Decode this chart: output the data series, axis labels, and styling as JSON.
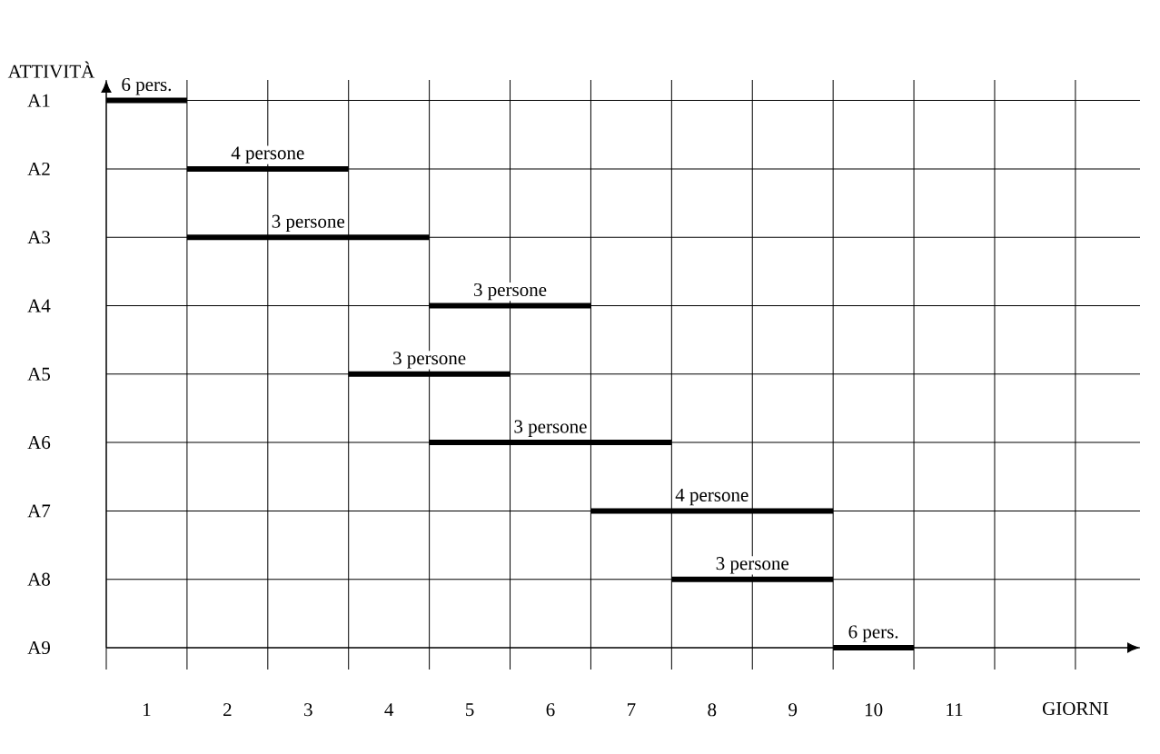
{
  "chart_data": {
    "type": "bar",
    "orientation": "horizontal",
    "color": "#000000",
    "ylabel": "ATTIVITÀ",
    "xlabel": "GIORNI",
    "categories": [
      "A1",
      "A2",
      "A3",
      "A4",
      "A5",
      "A6",
      "A7",
      "A8",
      "A9"
    ],
    "base": [
      0,
      1,
      1,
      4,
      3,
      4,
      6,
      7,
      9
    ],
    "values": [
      1,
      2,
      3,
      2,
      2,
      3,
      3,
      2,
      1
    ],
    "annotations": [
      {
        "text": "6 pers.",
        "x": 0.5,
        "y": "A1"
      },
      {
        "text": "4 persone",
        "x": 2,
        "y": "A2"
      },
      {
        "text": "3 persone",
        "x": 2.5,
        "y": "A3"
      },
      {
        "text": "3 persone",
        "x": 5,
        "y": "A4"
      },
      {
        "text": "3 persone",
        "x": 4,
        "y": "A5"
      },
      {
        "text": "3 persone",
        "x": 5.5,
        "y": "A6"
      },
      {
        "text": "4 persone",
        "x": 7.5,
        "y": "A7"
      },
      {
        "text": "3 persone",
        "x": 8,
        "y": "A8"
      },
      {
        "text": "6 pers.",
        "x": 9.5,
        "y": "A9"
      }
    ],
    "xlim": [
      0,
      12.8
    ],
    "xticks": [
      {
        "value": 0,
        "label": null
      },
      {
        "value": 1,
        "label": null
      },
      {
        "value": 2,
        "label": null
      },
      {
        "value": 3,
        "label": null
      },
      {
        "value": 4,
        "label": null
      },
      {
        "value": 5,
        "label": null
      },
      {
        "value": 6,
        "label": null
      },
      {
        "value": 7,
        "label": null
      },
      {
        "value": 8,
        "label": null
      },
      {
        "value": 9,
        "label": null
      },
      {
        "value": 10,
        "label": null
      },
      {
        "value": 11,
        "label": null
      },
      {
        "value": 12,
        "label": null
      },
      {
        "value": 0.5,
        "label": "1"
      },
      {
        "value": 1.5,
        "label": "2"
      },
      {
        "value": 2.5,
        "label": "3"
      },
      {
        "value": 3.5,
        "label": "4"
      },
      {
        "value": 4.5,
        "label": "5"
      },
      {
        "value": 5.5,
        "label": "6"
      },
      {
        "value": 6.5,
        "label": "7"
      },
      {
        "value": 7.5,
        "label": "8"
      },
      {
        "value": 8.5,
        "label": "9"
      },
      {
        "value": 9.5,
        "label": "10"
      },
      {
        "value": 10.5,
        "label": "11"
      }
    ],
    "grid": true
  }
}
